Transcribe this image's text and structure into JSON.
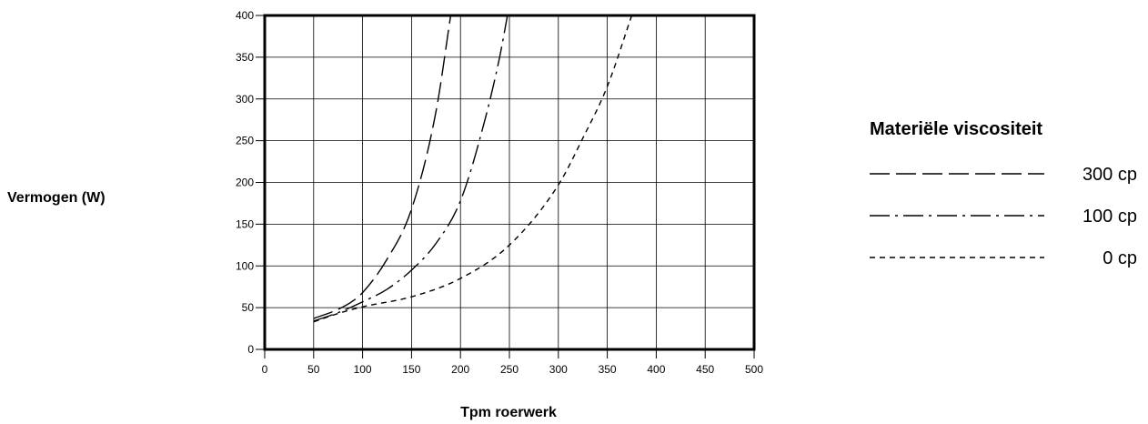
{
  "chart_data": {
    "type": "line",
    "title": "",
    "xlabel": "Tpm roerwerk",
    "ylabel": "Vermogen (W)",
    "xlim": [
      0,
      500
    ],
    "ylim": [
      0,
      400
    ],
    "x_ticks": [
      0,
      50,
      100,
      150,
      200,
      250,
      300,
      350,
      400,
      450,
      500
    ],
    "y_ticks": [
      0,
      50,
      100,
      150,
      200,
      250,
      300,
      350,
      400
    ],
    "grid": true,
    "legend_title": "Materiële viscositeit",
    "legend_position": "right",
    "series": [
      {
        "name": "300 cp",
        "style": "long-dash",
        "x": [
          50,
          75,
          90,
          100,
          125,
          150,
          175,
          190
        ],
        "y": [
          37,
          48,
          58,
          68,
          108,
          168,
          285,
          400
        ]
      },
      {
        "name": "100 cp",
        "style": "dash-dot",
        "x": [
          50,
          75,
          100,
          125,
          150,
          175,
          200,
          225,
          240,
          248
        ],
        "y": [
          34,
          44,
          57,
          72,
          95,
          127,
          178,
          275,
          350,
          400
        ]
      },
      {
        "name": "0 cp",
        "style": "short-dash",
        "x": [
          50,
          75,
          100,
          150,
          200,
          250,
          300,
          325,
          350,
          375
        ],
        "y": [
          33,
          43,
          51,
          63,
          85,
          125,
          197,
          253,
          315,
          400
        ]
      }
    ]
  }
}
